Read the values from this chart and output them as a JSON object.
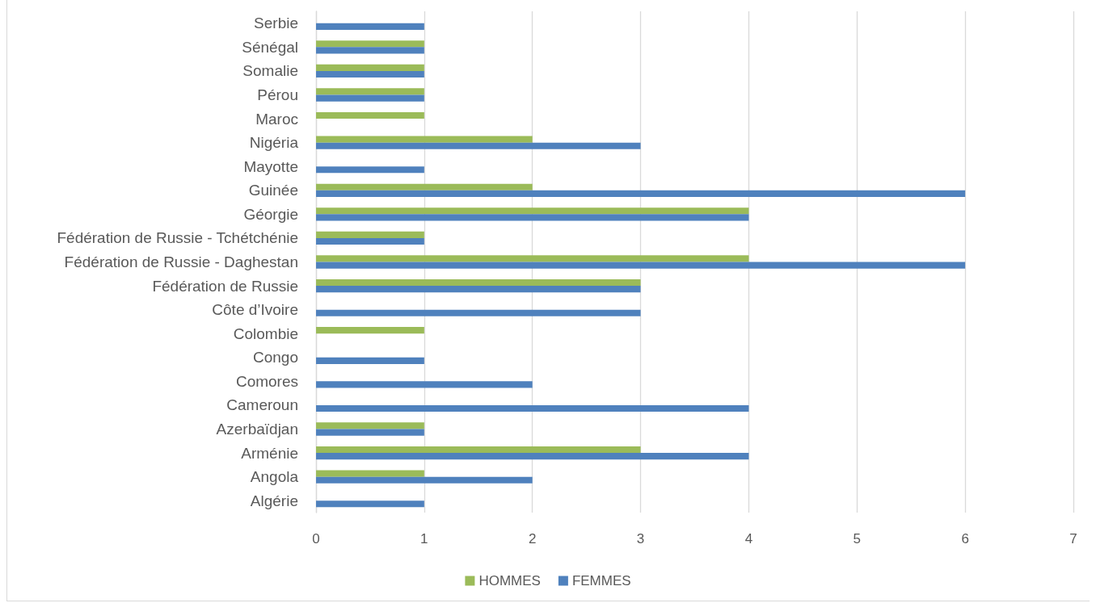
{
  "chart_data": {
    "type": "bar",
    "orientation": "horizontal",
    "categories": [
      "Serbie",
      "Sénégal",
      "Somalie",
      "Pérou",
      "Maroc",
      "Nigéria",
      "Mayotte",
      "Guinée",
      "Géorgie",
      "Fédération de Russie - Tchétchénie",
      "Fédération de Russie - Daghestan",
      "Fédération de Russie",
      "Côte d’Ivoire",
      "Colombie",
      "Congo",
      "Comores",
      "Cameroun",
      "Azerbaïdjan",
      "Arménie",
      "Angola",
      "Algérie"
    ],
    "series": [
      {
        "name": "HOMMES",
        "color": "#9bbb59",
        "values": [
          null,
          1,
          1,
          1,
          1,
          2,
          null,
          2,
          4,
          1,
          4,
          3,
          null,
          1,
          null,
          null,
          null,
          1,
          3,
          1,
          null
        ]
      },
      {
        "name": "FEMMES",
        "color": "#4f81bd",
        "values": [
          1,
          1,
          1,
          1,
          null,
          3,
          1,
          6,
          4,
          1,
          6,
          3,
          3,
          null,
          1,
          2,
          4,
          1,
          4,
          2,
          1
        ]
      }
    ],
    "xlim": [
      0,
      7
    ],
    "xticks": [
      0,
      1,
      2,
      3,
      4,
      5,
      6,
      7
    ],
    "grid": "x",
    "legend": "bottom"
  }
}
